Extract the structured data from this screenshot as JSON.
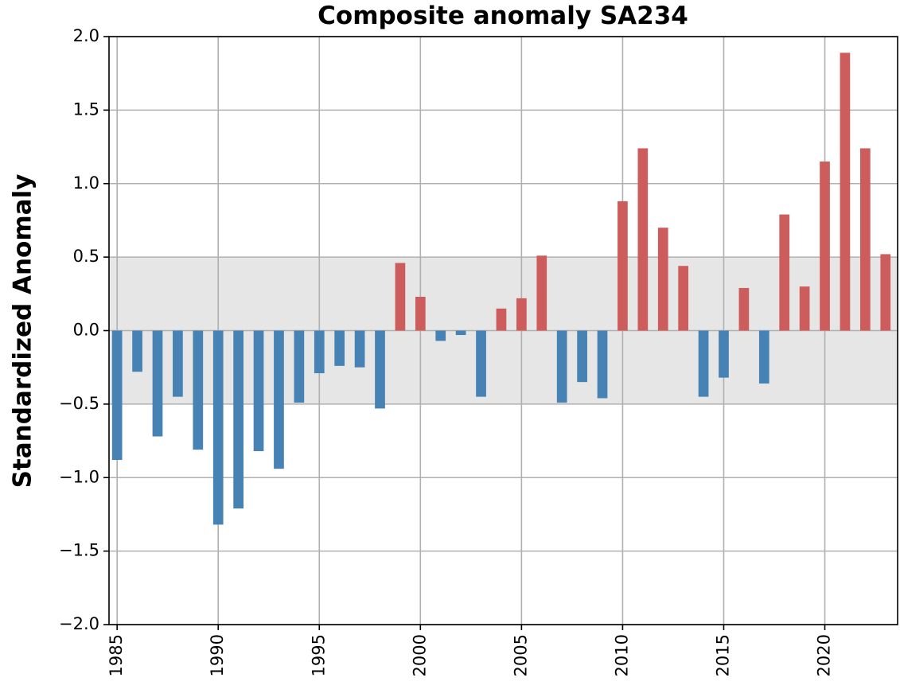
{
  "chart_data": {
    "type": "bar",
    "title": "Composite anomaly SA234",
    "xlabel": "",
    "ylabel": "Standardized Anomaly",
    "ylim": [
      -2.0,
      2.0
    ],
    "xlim": [
      1984.6,
      2023.6
    ],
    "grid": true,
    "neutral_band": [
      -0.5,
      0.5
    ],
    "colors": {
      "positive": "#cd5c5c",
      "negative": "#4682b4",
      "band": "#e6e6e6",
      "grid": "#b0b0b0"
    },
    "y_ticks": [
      {
        "value": 2.0,
        "label": "2.0"
      },
      {
        "value": 1.5,
        "label": "1.5"
      },
      {
        "value": 1.0,
        "label": "1.0"
      },
      {
        "value": 0.5,
        "label": "0.5"
      },
      {
        "value": 0.0,
        "label": "0.0"
      },
      {
        "value": -0.5,
        "label": "−0.5"
      },
      {
        "value": -1.0,
        "label": "−1.0"
      },
      {
        "value": -1.5,
        "label": "−1.5"
      },
      {
        "value": -2.0,
        "label": "−2.0"
      }
    ],
    "x_ticks": [
      {
        "value": 1985,
        "label": "1985"
      },
      {
        "value": 1990,
        "label": "1990"
      },
      {
        "value": 1995,
        "label": "1995"
      },
      {
        "value": 2000,
        "label": "2000"
      },
      {
        "value": 2005,
        "label": "2005"
      },
      {
        "value": 2010,
        "label": "2010"
      },
      {
        "value": 2015,
        "label": "2015"
      },
      {
        "value": 2020,
        "label": "2020"
      }
    ],
    "x": [
      1985,
      1986,
      1987,
      1988,
      1989,
      1990,
      1991,
      1992,
      1993,
      1994,
      1995,
      1996,
      1997,
      1998,
      1999,
      2000,
      2001,
      2002,
      2003,
      2004,
      2005,
      2006,
      2007,
      2008,
      2009,
      2010,
      2011,
      2012,
      2013,
      2014,
      2015,
      2016,
      2017,
      2018,
      2019,
      2020,
      2021,
      2022,
      2023
    ],
    "values": [
      -0.88,
      -0.28,
      -0.72,
      -0.45,
      -0.81,
      -1.32,
      -1.21,
      -0.82,
      -0.94,
      -0.49,
      -0.29,
      -0.24,
      -0.25,
      -0.53,
      0.46,
      0.23,
      -0.07,
      -0.03,
      -0.45,
      0.15,
      0.22,
      0.51,
      -0.49,
      -0.35,
      -0.46,
      0.88,
      1.24,
      0.7,
      0.44,
      -0.45,
      -0.32,
      0.29,
      -0.36,
      0.79,
      0.3,
      1.15,
      1.89,
      1.24,
      0.52
    ]
  }
}
